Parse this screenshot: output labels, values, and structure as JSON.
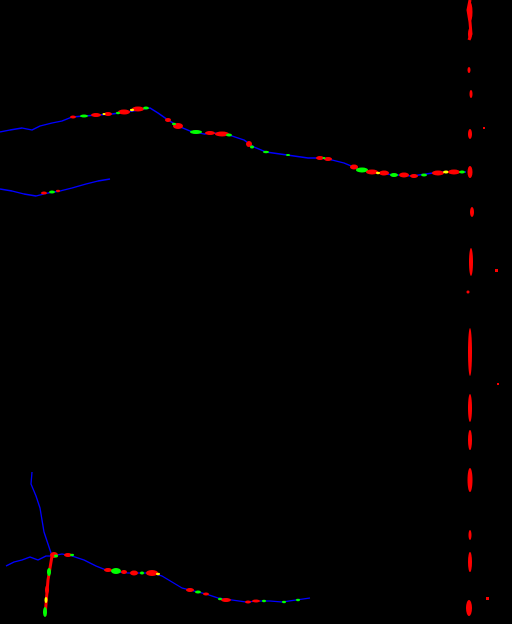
{
  "image": {
    "kind": "segmentation mask",
    "background_color": "#000000"
  },
  "legend_colors": {
    "thin_trace": "#0000ff",
    "wide_region": "#ff0000",
    "mid_region": "#00ff00",
    "transition": "#ffff00"
  }
}
